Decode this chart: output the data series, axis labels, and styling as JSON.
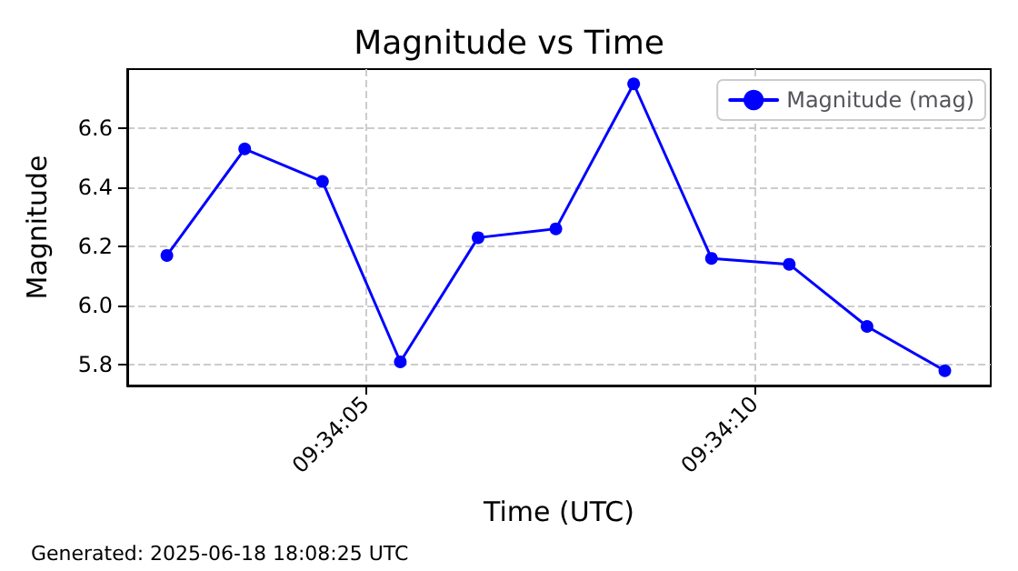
{
  "chart_data": {
    "type": "line",
    "title": "Magnitude vs Time",
    "xlabel": "Time (UTC)",
    "ylabel": "Magnitude",
    "x": [
      9.5673472,
      9.567625,
      9.5679028,
      9.5681806,
      9.5684583,
      9.5687361,
      9.5690139,
      9.5692917,
      9.5695694,
      9.5698472,
      9.570125
    ],
    "series": [
      {
        "name": "Magnitude (mag)",
        "color": "#0000ff",
        "values": [
          6.17,
          6.53,
          6.42,
          5.81,
          6.23,
          6.26,
          6.75,
          6.16,
          6.14,
          5.93,
          5.78
        ]
      }
    ],
    "xlim": [
      9.5672056,
      9.5702889
    ],
    "xticks": [
      {
        "value": 9.5680556,
        "label": "09:34:05"
      },
      {
        "value": 9.5694444,
        "label": "09:34:10"
      }
    ],
    "ylim": [
      5.73,
      6.8
    ],
    "yticks": [
      5.8,
      {
        "value": 6,
        "label": "6.0"
      },
      6.2,
      6.4,
      6.6
    ],
    "grid": true,
    "legend": "top right",
    "marker": "circle",
    "line_style": "solid",
    "annotations": [
      "Generated: 2025-06-18 18:08:25 UTC"
    ]
  }
}
